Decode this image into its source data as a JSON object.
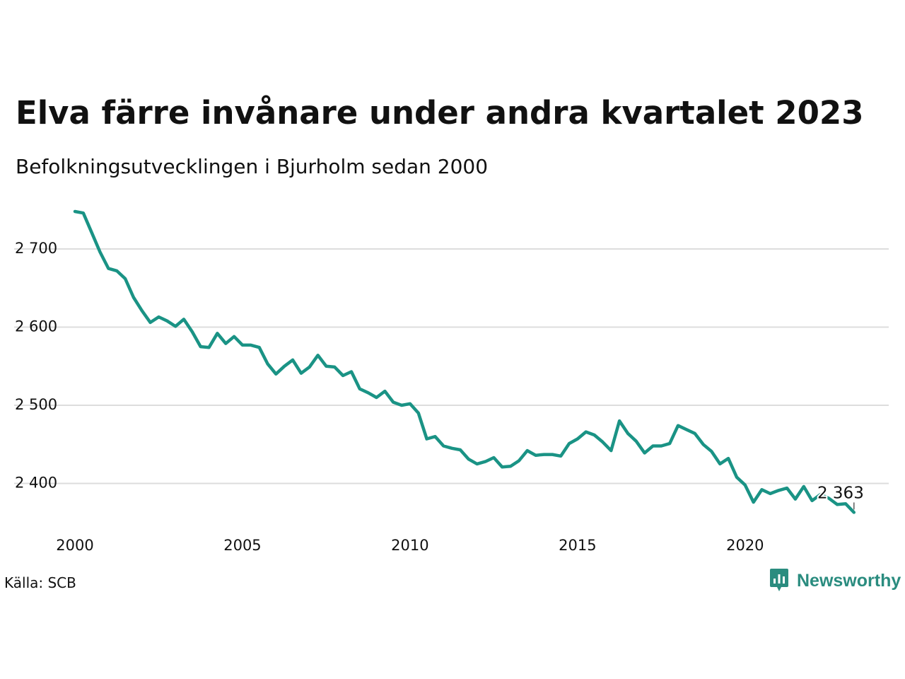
{
  "title": "Elva färre invånare under andra kvartalet 2023",
  "subtitle": "Befolkningsutvecklingen i Bjurholm sedan 2000",
  "source": "Källa: SCB",
  "brand": {
    "name": "Newsworthy",
    "icon": "newsworthy-logo-icon"
  },
  "colors": {
    "line": "#1a9385",
    "grid": "#dddddd",
    "text": "#111111",
    "brand": "#2a8c7f"
  },
  "chart_data": {
    "type": "line",
    "title": "Elva färre invånare under andra kvartalet 2023",
    "subtitle": "Befolkningsutvecklingen i Bjurholm sedan 2000",
    "xlabel": "",
    "ylabel": "",
    "grid": true,
    "legend": "none",
    "x_ticks": [
      2000,
      2005,
      2010,
      2015,
      2020
    ],
    "y_ticks": [
      2400,
      2500,
      2600,
      2700
    ],
    "y_tick_labels": [
      "2 400",
      "2 500",
      "2 600",
      "2 700"
    ],
    "xlim": [
      "2000-Q1",
      "2023-Q2"
    ],
    "ylim": [
      2355,
      2760
    ],
    "end_label": "2 363",
    "series": [
      {
        "x": [
          "2000-Q1",
          "2000-Q2",
          "2000-Q3",
          "2000-Q4",
          "2001-Q1",
          "2001-Q2",
          "2001-Q3",
          "2001-Q4",
          "2002-Q1",
          "2002-Q2",
          "2002-Q3",
          "2002-Q4",
          "2003-Q1",
          "2003-Q2",
          "2003-Q3",
          "2003-Q4",
          "2004-Q1",
          "2004-Q2",
          "2004-Q3",
          "2004-Q4",
          "2005-Q1",
          "2005-Q2",
          "2005-Q3",
          "2005-Q4",
          "2006-Q1",
          "2006-Q2",
          "2006-Q3",
          "2006-Q4",
          "2007-Q1",
          "2007-Q2",
          "2007-Q3",
          "2007-Q4",
          "2008-Q1",
          "2008-Q2",
          "2008-Q3",
          "2008-Q4",
          "2009-Q1",
          "2009-Q2",
          "2009-Q3",
          "2009-Q4",
          "2010-Q1",
          "2010-Q2",
          "2010-Q3",
          "2010-Q4",
          "2011-Q1",
          "2011-Q2",
          "2011-Q3",
          "2011-Q4",
          "2012-Q1",
          "2012-Q2",
          "2012-Q3",
          "2012-Q4",
          "2013-Q1",
          "2013-Q2",
          "2013-Q3",
          "2013-Q4",
          "2014-Q1",
          "2014-Q2",
          "2014-Q3",
          "2014-Q4",
          "2015-Q1",
          "2015-Q2",
          "2015-Q3",
          "2015-Q4",
          "2016-Q1",
          "2016-Q2",
          "2016-Q3",
          "2016-Q4",
          "2017-Q1",
          "2017-Q2",
          "2017-Q3",
          "2017-Q4",
          "2018-Q1",
          "2018-Q2",
          "2018-Q3",
          "2018-Q4",
          "2019-Q1",
          "2019-Q2",
          "2019-Q3",
          "2019-Q4",
          "2020-Q1",
          "2020-Q2",
          "2020-Q3",
          "2020-Q4",
          "2021-Q1",
          "2021-Q2",
          "2021-Q3",
          "2021-Q4",
          "2022-Q1",
          "2022-Q2",
          "2022-Q3",
          "2022-Q4",
          "2023-Q1",
          "2023-Q2"
        ],
        "values": [
          2748,
          2746,
          2721,
          2696,
          2675,
          2672,
          2662,
          2638,
          2621,
          2606,
          2613,
          2608,
          2601,
          2610,
          2594,
          2575,
          2574,
          2592,
          2579,
          2588,
          2577,
          2577,
          2574,
          2553,
          2540,
          2550,
          2558,
          2541,
          2549,
          2564,
          2550,
          2549,
          2538,
          2543,
          2521,
          2516,
          2510,
          2518,
          2504,
          2500,
          2502,
          2490,
          2457,
          2460,
          2448,
          2445,
          2443,
          2431,
          2425,
          2428,
          2433,
          2421,
          2422,
          2429,
          2442,
          2436,
          2437,
          2437,
          2435,
          2451,
          2457,
          2466,
          2462,
          2453,
          2442,
          2480,
          2464,
          2454,
          2439,
          2448,
          2448,
          2451,
          2474,
          2469,
          2464,
          2450,
          2441,
          2425,
          2432,
          2408,
          2398,
          2376,
          2392,
          2387,
          2391,
          2394,
          2380,
          2396,
          2378,
          2386,
          2381,
          2373,
          2374,
          2363
        ]
      }
    ]
  }
}
